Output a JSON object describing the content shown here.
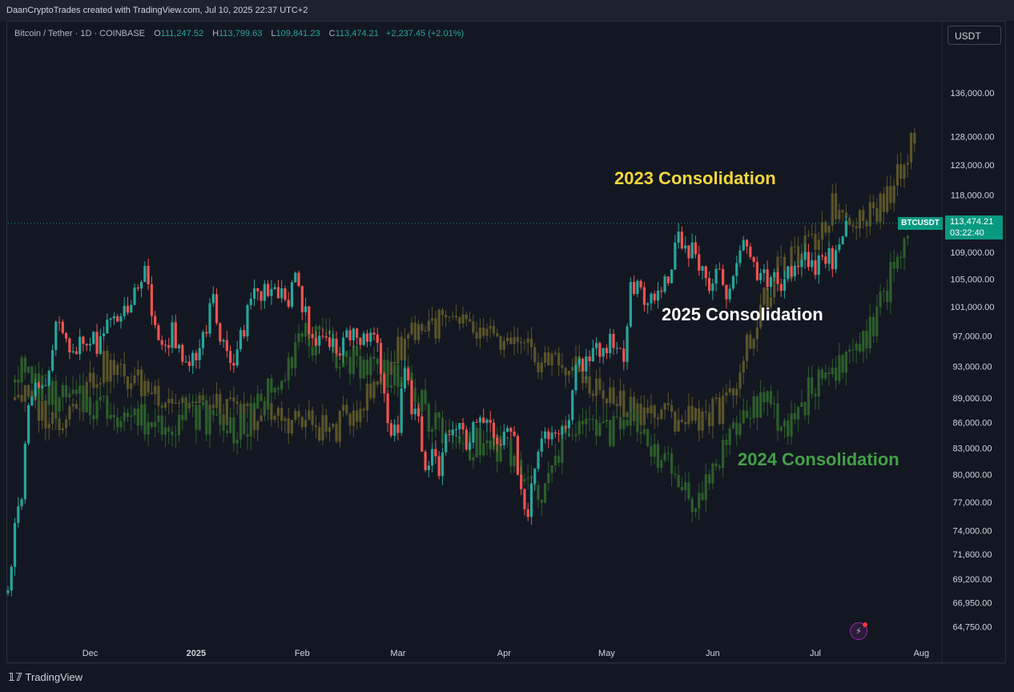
{
  "header": {
    "credit": "DaanCryptoTrades created with TradingView.com, Jul 10, 2025 22:37 UTC+2"
  },
  "legend": {
    "symbol": "Bitcoin / Tether · 1D · COINBASE",
    "o_label": "O",
    "o": "111,247.52",
    "h_label": "H",
    "h": "113,799.63",
    "l_label": "L",
    "l": "109,841.23",
    "c_label": "C",
    "c": "113,474.21",
    "change": "+2,237.45 (+2.01%)"
  },
  "currency_button": "USDT",
  "price_tag": {
    "symbol": "BTCUSDT",
    "price": "113,474.21",
    "countdown": "03:22:40"
  },
  "annotations": {
    "a2023": "2023 Consolidation",
    "a2025": "2025 Consolidation",
    "a2024": "2024 Consolidation"
  },
  "footer": {
    "brand": "TradingView"
  },
  "colors": {
    "up": "#26a69a",
    "down": "#ef5350",
    "overlay2023": "#5a5428",
    "overlay2024": "#2c5e2a",
    "label2023": "#f5d63a",
    "label2025": "#ffffff",
    "label2024": "#43a047",
    "last_price": "#089981"
  },
  "chart_data": {
    "type": "candlestick",
    "title": "Bitcoin / Tether · 1D · COINBASE",
    "y_scale": "log",
    "ylim": [
      63500,
      150000
    ],
    "y_ticks": [
      64750,
      66950,
      69200,
      71600,
      74000,
      77000,
      80000,
      83000,
      86000,
      89000,
      93000,
      97000,
      101000,
      105000,
      109000,
      118000,
      123000,
      128000,
      136000
    ],
    "y_tick_labels": [
      "64,750.00",
      "66,950.00",
      "69,200.00",
      "71,600.00",
      "74,000.00",
      "77,000.00",
      "80,000.00",
      "83,000.00",
      "86,000.00",
      "89,000.00",
      "93,000.00",
      "97,000.00",
      "101,000.00",
      "105,000.00",
      "109,000.00",
      "118,000.00",
      "123,000.00",
      "128,000.00",
      "136,000.00"
    ],
    "x_range": [
      "2024-11-07",
      "2025-08-07"
    ],
    "x_ticks": [
      {
        "date": "2024-12-01",
        "label": "Dec"
      },
      {
        "date": "2025-01-01",
        "label": "2025"
      },
      {
        "date": "2025-02-01",
        "label": "Feb"
      },
      {
        "date": "2025-03-01",
        "label": "Mar"
      },
      {
        "date": "2025-04-01",
        "label": "Apr"
      },
      {
        "date": "2025-05-01",
        "label": "May"
      },
      {
        "date": "2025-06-01",
        "label": "Jun"
      },
      {
        "date": "2025-07-01",
        "label": "Jul"
      },
      {
        "date": "2025-08-01",
        "label": "Aug"
      }
    ],
    "last_price": 113474.21,
    "series": [
      {
        "name": "",
        "role": "price",
        "points": [
          [
            "2024-11-07",
            67500
          ],
          [
            "2024-11-09",
            75500
          ],
          [
            "2024-11-11",
            76500
          ],
          [
            "2024-11-13",
            88000
          ],
          [
            "2024-11-15",
            89500
          ],
          [
            "2024-11-17",
            90500
          ],
          [
            "2024-11-19",
            91500
          ],
          [
            "2024-11-21",
            98000
          ],
          [
            "2024-11-23",
            97500
          ],
          [
            "2024-11-25",
            94000
          ],
          [
            "2024-11-27",
            95500
          ],
          [
            "2024-11-29",
            97500
          ],
          [
            "2024-12-01",
            96800
          ],
          [
            "2024-12-03",
            95500
          ],
          [
            "2024-12-05",
            98000
          ],
          [
            "2024-12-07",
            99500
          ],
          [
            "2024-12-09",
            97500
          ],
          [
            "2024-12-11",
            100500
          ],
          [
            "2024-12-13",
            101500
          ],
          [
            "2024-12-15",
            103500
          ],
          [
            "2024-12-17",
            107000
          ],
          [
            "2024-12-19",
            98500
          ],
          [
            "2024-12-21",
            95500
          ],
          [
            "2024-12-23",
            94500
          ],
          [
            "2024-12-25",
            98000
          ],
          [
            "2024-12-27",
            95000
          ],
          [
            "2024-12-29",
            93500
          ],
          [
            "2024-12-31",
            94000
          ],
          [
            "2025-01-02",
            96500
          ],
          [
            "2025-01-04",
            98500
          ],
          [
            "2025-01-06",
            101500
          ],
          [
            "2025-01-08",
            95500
          ],
          [
            "2025-01-10",
            94500
          ],
          [
            "2025-01-12",
            94200
          ],
          [
            "2025-01-14",
            96500
          ],
          [
            "2025-01-16",
            100500
          ],
          [
            "2025-01-18",
            104500
          ],
          [
            "2025-01-20",
            102000
          ],
          [
            "2025-01-22",
            103500
          ],
          [
            "2025-01-24",
            104500
          ],
          [
            "2025-01-26",
            102500
          ],
          [
            "2025-01-28",
            101500
          ],
          [
            "2025-01-30",
            104500
          ],
          [
            "2025-02-01",
            100500
          ],
          [
            "2025-02-03",
            98500
          ],
          [
            "2025-02-05",
            97000
          ],
          [
            "2025-02-07",
            96500
          ],
          [
            "2025-02-09",
            96500
          ],
          [
            "2025-02-11",
            95000
          ],
          [
            "2025-02-13",
            96500
          ],
          [
            "2025-02-15",
            97500
          ],
          [
            "2025-02-17",
            95800
          ],
          [
            "2025-02-19",
            96500
          ],
          [
            "2025-02-21",
            96000
          ],
          [
            "2025-02-23",
            95500
          ],
          [
            "2025-02-25",
            88500
          ],
          [
            "2025-02-27",
            84500
          ],
          [
            "2025-03-01",
            86000
          ],
          [
            "2025-03-03",
            92000
          ],
          [
            "2025-03-05",
            88000
          ],
          [
            "2025-03-07",
            86500
          ],
          [
            "2025-03-09",
            80500
          ],
          [
            "2025-03-11",
            82500
          ],
          [
            "2025-03-13",
            81000
          ],
          [
            "2025-03-15",
            84000
          ],
          [
            "2025-03-17",
            84000
          ],
          [
            "2025-03-19",
            85500
          ],
          [
            "2025-03-21",
            84000
          ],
          [
            "2025-03-23",
            86000
          ],
          [
            "2025-03-25",
            87500
          ],
          [
            "2025-03-27",
            87000
          ],
          [
            "2025-03-29",
            83000
          ],
          [
            "2025-03-31",
            82500
          ],
          [
            "2025-04-02",
            85000
          ],
          [
            "2025-04-04",
            83800
          ],
          [
            "2025-04-06",
            78000
          ],
          [
            "2025-04-08",
            76500
          ],
          [
            "2025-04-10",
            79500
          ],
          [
            "2025-04-12",
            85000
          ],
          [
            "2025-04-14",
            84500
          ],
          [
            "2025-04-16",
            84000
          ],
          [
            "2025-04-18",
            84500
          ],
          [
            "2025-04-20",
            85000
          ],
          [
            "2025-04-22",
            93000
          ],
          [
            "2025-04-24",
            93500
          ],
          [
            "2025-04-26",
            94800
          ],
          [
            "2025-04-28",
            95000
          ],
          [
            "2025-04-30",
            94200
          ],
          [
            "2025-05-02",
            96500
          ],
          [
            "2025-05-04",
            95000
          ],
          [
            "2025-05-06",
            94500
          ],
          [
            "2025-05-08",
            103000
          ],
          [
            "2025-05-10",
            104000
          ],
          [
            "2025-05-12",
            102500
          ],
          [
            "2025-05-14",
            103500
          ],
          [
            "2025-05-16",
            103500
          ],
          [
            "2025-05-18",
            104500
          ],
          [
            "2025-05-20",
            106500
          ],
          [
            "2025-05-22",
            111500
          ],
          [
            "2025-05-24",
            108500
          ],
          [
            "2025-05-26",
            110000
          ],
          [
            "2025-05-28",
            107500
          ],
          [
            "2025-05-30",
            104000
          ],
          [
            "2025-06-01",
            104500
          ],
          [
            "2025-06-03",
            105500
          ],
          [
            "2025-06-05",
            101500
          ],
          [
            "2025-06-07",
            105500
          ],
          [
            "2025-06-09",
            110000
          ],
          [
            "2025-06-11",
            109500
          ],
          [
            "2025-06-13",
            106000
          ],
          [
            "2025-06-15",
            105500
          ],
          [
            "2025-06-17",
            104500
          ],
          [
            "2025-06-19",
            104500
          ],
          [
            "2025-06-21",
            102500
          ],
          [
            "2025-06-23",
            105500
          ],
          [
            "2025-06-25",
            107500
          ],
          [
            "2025-06-27",
            107000
          ],
          [
            "2025-06-29",
            108000
          ],
          [
            "2025-07-01",
            105800
          ],
          [
            "2025-07-03",
            109500
          ],
          [
            "2025-07-05",
            108000
          ],
          [
            "2025-07-07",
            108300
          ],
          [
            "2025-07-09",
            111300
          ],
          [
            "2025-07-10",
            113474
          ]
        ]
      },
      {
        "name": "",
        "role": "overlay-2023",
        "points": [
          [
            "2024-11-09",
            90000
          ],
          [
            "2024-11-21",
            86000
          ],
          [
            "2024-12-05",
            93000
          ],
          [
            "2024-12-19",
            90000
          ],
          [
            "2025-01-01",
            88000
          ],
          [
            "2025-01-15",
            87000
          ],
          [
            "2025-01-29",
            86500
          ],
          [
            "2025-02-10",
            85000
          ],
          [
            "2025-02-22",
            90000
          ],
          [
            "2025-03-05",
            98000
          ],
          [
            "2025-03-15",
            99000
          ],
          [
            "2025-03-25",
            97000
          ],
          [
            "2025-04-05",
            95000
          ],
          [
            "2025-04-20",
            93000
          ],
          [
            "2025-05-01",
            89000
          ],
          [
            "2025-05-15",
            87000
          ],
          [
            "2025-05-25",
            86500
          ],
          [
            "2025-06-05",
            88000
          ],
          [
            "2025-06-12",
            97000
          ],
          [
            "2025-06-20",
            106000
          ],
          [
            "2025-06-30",
            110000
          ],
          [
            "2025-07-06",
            116000
          ],
          [
            "2025-07-14",
            114500
          ],
          [
            "2025-07-22",
            117000
          ],
          [
            "2025-07-30",
            129000
          ]
        ]
      },
      {
        "name": "",
        "role": "overlay-2024",
        "points": [
          [
            "2024-11-09",
            93000
          ],
          [
            "2024-11-21",
            89000
          ],
          [
            "2024-12-05",
            88000
          ],
          [
            "2024-12-19",
            86000
          ],
          [
            "2025-01-01",
            87000
          ],
          [
            "2025-01-15",
            85000
          ],
          [
            "2025-02-01",
            97000
          ],
          [
            "2025-02-15",
            94000
          ],
          [
            "2025-03-01",
            92000
          ],
          [
            "2025-03-15",
            84000
          ],
          [
            "2025-04-01",
            83000
          ],
          [
            "2025-04-12",
            77000
          ],
          [
            "2025-04-20",
            86000
          ],
          [
            "2025-05-01",
            85000
          ],
          [
            "2025-05-10",
            86000
          ],
          [
            "2025-05-20",
            80000
          ],
          [
            "2025-05-28",
            77000
          ],
          [
            "2025-06-05",
            84000
          ],
          [
            "2025-06-15",
            89000
          ],
          [
            "2025-06-22",
            85000
          ],
          [
            "2025-07-01",
            91000
          ],
          [
            "2025-07-10",
            94000
          ],
          [
            "2025-07-18",
            98000
          ],
          [
            "2025-07-24",
            107000
          ],
          [
            "2025-07-28",
            113000
          ]
        ]
      }
    ]
  }
}
